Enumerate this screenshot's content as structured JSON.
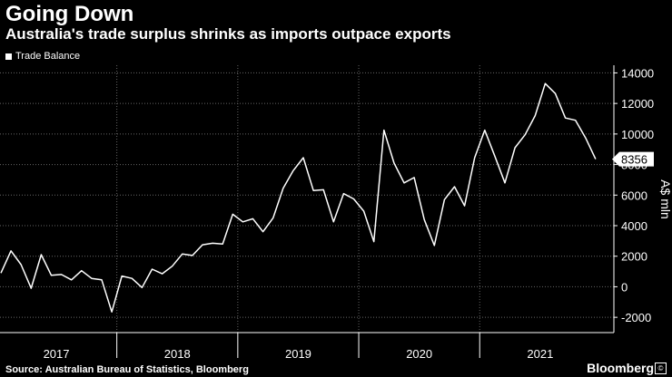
{
  "header": {
    "title": "Going Down",
    "subtitle": "Australia's trade surplus shrinks as imports outpace exports"
  },
  "footer": {
    "source": "Source: Australian Bureau of Statistics, Bloomberg",
    "brand": "Bloomberg",
    "brand_mark": "©"
  },
  "colors": {
    "background": "#000000",
    "line": "#ffffff",
    "grid": "#666666"
  },
  "chart_data": {
    "type": "line",
    "title": "Going Down",
    "subtitle": "Australia's trade surplus shrinks as imports outpace exports",
    "xlabel": "",
    "ylabel": "A$ mln",
    "ylim": [
      -3000,
      14500
    ],
    "y_ticks": [
      -2000,
      0,
      2000,
      4000,
      6000,
      8000,
      10000,
      12000,
      14000
    ],
    "x_year_labels": [
      "2017",
      "2018",
      "2019",
      "2020",
      "2021"
    ],
    "x_start": "2017-01",
    "grid": true,
    "legend_position": "top-left",
    "last_value_label": "8356",
    "series": [
      {
        "name": "Trade Balance",
        "values": [
          900,
          2350,
          1450,
          -100,
          2100,
          750,
          800,
          450,
          1050,
          550,
          450,
          -1650,
          700,
          550,
          -50,
          1150,
          850,
          1350,
          2150,
          2050,
          2750,
          2850,
          2800,
          4750,
          4250,
          4450,
          3600,
          4500,
          6450,
          7600,
          8450,
          6300,
          6350,
          4250,
          6100,
          5750,
          4950,
          2950,
          10250,
          8100,
          6800,
          7150,
          4400,
          2700,
          5700,
          6550,
          5300,
          8450,
          10250,
          8550,
          6800,
          9100,
          9950,
          11200,
          13300,
          12650,
          11050,
          10900,
          9750,
          8356
        ]
      }
    ]
  }
}
